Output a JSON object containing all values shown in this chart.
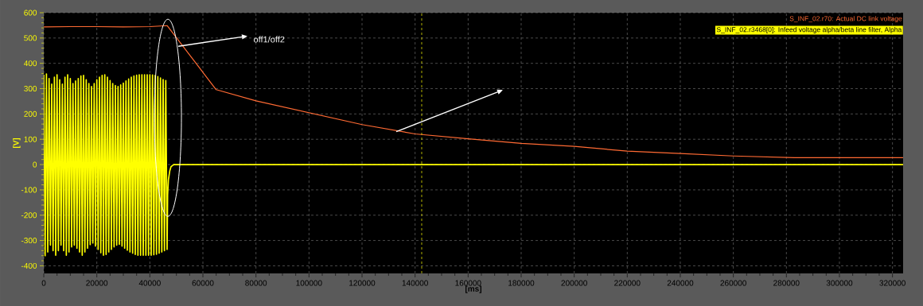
{
  "chart_data": {
    "type": "line",
    "xlabel": "[ms]",
    "ylabel": "[V]",
    "xlim": [
      0,
      324000
    ],
    "ylim": [
      -430,
      600
    ],
    "xticks": [
      0,
      20000,
      40000,
      60000,
      80000,
      100000,
      120000,
      140000,
      160000,
      180000,
      200000,
      220000,
      240000,
      260000,
      280000,
      300000,
      320000
    ],
    "yticks": [
      -400,
      -300,
      -200,
      -100,
      0,
      100,
      200,
      300,
      400,
      500,
      600
    ],
    "grid": true,
    "legend": "top right",
    "marker": "none",
    "line_style": "solid",
    "series": [
      {
        "name": "S_INF_02.r70: Actual DC link voltage",
        "color": "#ff6a33",
        "x": [
          0,
          10000,
          20000,
          30000,
          40000,
          46500,
          65000,
          80000,
          100000,
          120000,
          140000,
          160000,
          180000,
          200000,
          220000,
          240000,
          260000,
          283000,
          324000
        ],
        "values": [
          544,
          545,
          545,
          544,
          545,
          549,
          296,
          252,
          205,
          158,
          121,
          102,
          84,
          72,
          53,
          44,
          34,
          27,
          27
        ]
      },
      {
        "name": "S_INF_02.r3468[0]: Infeed voltage alpha/beta line filter, Alpha",
        "color": "#ffff00",
        "x": [
          0,
          500,
          1000,
          1500,
          2000,
          2500,
          3000,
          3500,
          4000,
          4500,
          5000,
          5500,
          6000,
          6500,
          7000,
          7500,
          8000,
          8500,
          9000,
          9500,
          10000,
          10500,
          11000,
          11500,
          12000,
          12500,
          13000,
          13500,
          14000,
          14500,
          15000,
          15500,
          16000,
          16500,
          17000,
          17500,
          18000,
          18500,
          19000,
          19500,
          20000,
          20500,
          21000,
          21500,
          22000,
          22500,
          23000,
          23500,
          24000,
          24500,
          25000,
          25500,
          26000,
          26500,
          27000,
          27500,
          28000,
          28500,
          29000,
          29500,
          30000,
          30500,
          31000,
          31500,
          32000,
          32500,
          33000,
          33500,
          34000,
          34500,
          35000,
          35500,
          36000,
          36500,
          37000,
          37500,
          38000,
          38500,
          39000,
          39500,
          40000,
          40500,
          41000,
          41500,
          42000,
          42500,
          43000,
          43500,
          44000,
          44500,
          45000,
          45500,
          46000,
          46500,
          46700,
          47000,
          47500,
          48000,
          49000,
          324000
        ],
        "values": [
          355,
          -360,
          358,
          -345,
          340,
          -318,
          318,
          -340,
          345,
          -358,
          355,
          -340,
          335,
          -318,
          318,
          -340,
          345,
          -358,
          355,
          -345,
          340,
          -325,
          320,
          -318,
          330,
          -330,
          340,
          -345,
          350,
          -358,
          352,
          -345,
          335,
          -330,
          320,
          -316,
          308,
          -310,
          320,
          -322,
          335,
          -335,
          345,
          -348,
          352,
          -358,
          355,
          -355,
          345,
          -345,
          332,
          -335,
          320,
          -325,
          312,
          -318,
          308,
          -315,
          315,
          -322,
          322,
          -330,
          330,
          -338,
          338,
          -345,
          345,
          -350,
          350,
          -355,
          353,
          -358,
          355,
          -358,
          355,
          -358,
          355,
          -358,
          355,
          -358,
          355,
          -358,
          354,
          -356,
          352,
          -354,
          348,
          -350,
          342,
          -345,
          336,
          -340,
          332,
          -335,
          -120,
          -60,
          -25,
          -8,
          0,
          0
        ]
      }
    ],
    "ref_lines": [
      {
        "axis": "x",
        "value": 142500,
        "color": "#ffff00",
        "line_style": "dashed"
      }
    ],
    "annotations": [
      "off1/off2"
    ]
  }
}
